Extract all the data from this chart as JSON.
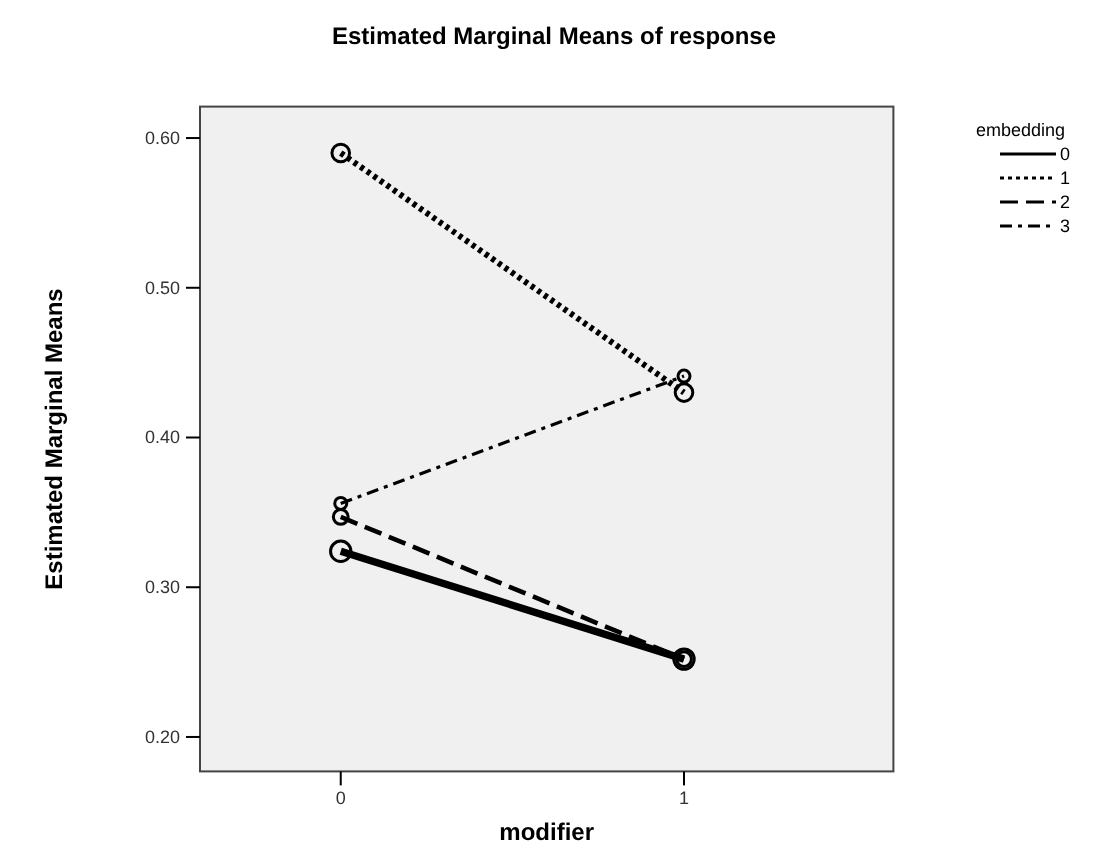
{
  "chart_data": {
    "type": "line",
    "title": "Estimated Marginal Means of response",
    "xlabel": "modifier",
    "ylabel": "Estimated Marginal Means",
    "legend_title": "embedding",
    "x": [
      0,
      1
    ],
    "series": [
      {
        "name": "0",
        "color": "#000000",
        "values": [
          0.324,
          0.252
        ],
        "line_style": "solid"
      },
      {
        "name": "1",
        "color": "#000000",
        "values": [
          0.59,
          0.43
        ],
        "line_style": "dotted"
      },
      {
        "name": "2",
        "color": "#000000",
        "values": [
          0.347,
          0.252
        ],
        "line_style": "dashed"
      },
      {
        "name": "3",
        "color": "#000000",
        "values": [
          0.356,
          0.441
        ],
        "line_style": "dashdot"
      }
    ],
    "xlim": [
      -0.41,
      1.61
    ],
    "xticks": [
      0,
      1
    ],
    "ylim": [
      0.177,
      0.621
    ],
    "yticks": [
      {
        "value": 0.2,
        "label": "0.20"
      },
      {
        "value": 0.3,
        "label": "0.30"
      },
      {
        "value": 0.4,
        "label": "0.40"
      },
      {
        "value": 0.5,
        "label": "0.50"
      },
      {
        "value": 0.6,
        "label": "0.60"
      }
    ],
    "grid": false,
    "legend": "top right",
    "marker": "circle"
  }
}
